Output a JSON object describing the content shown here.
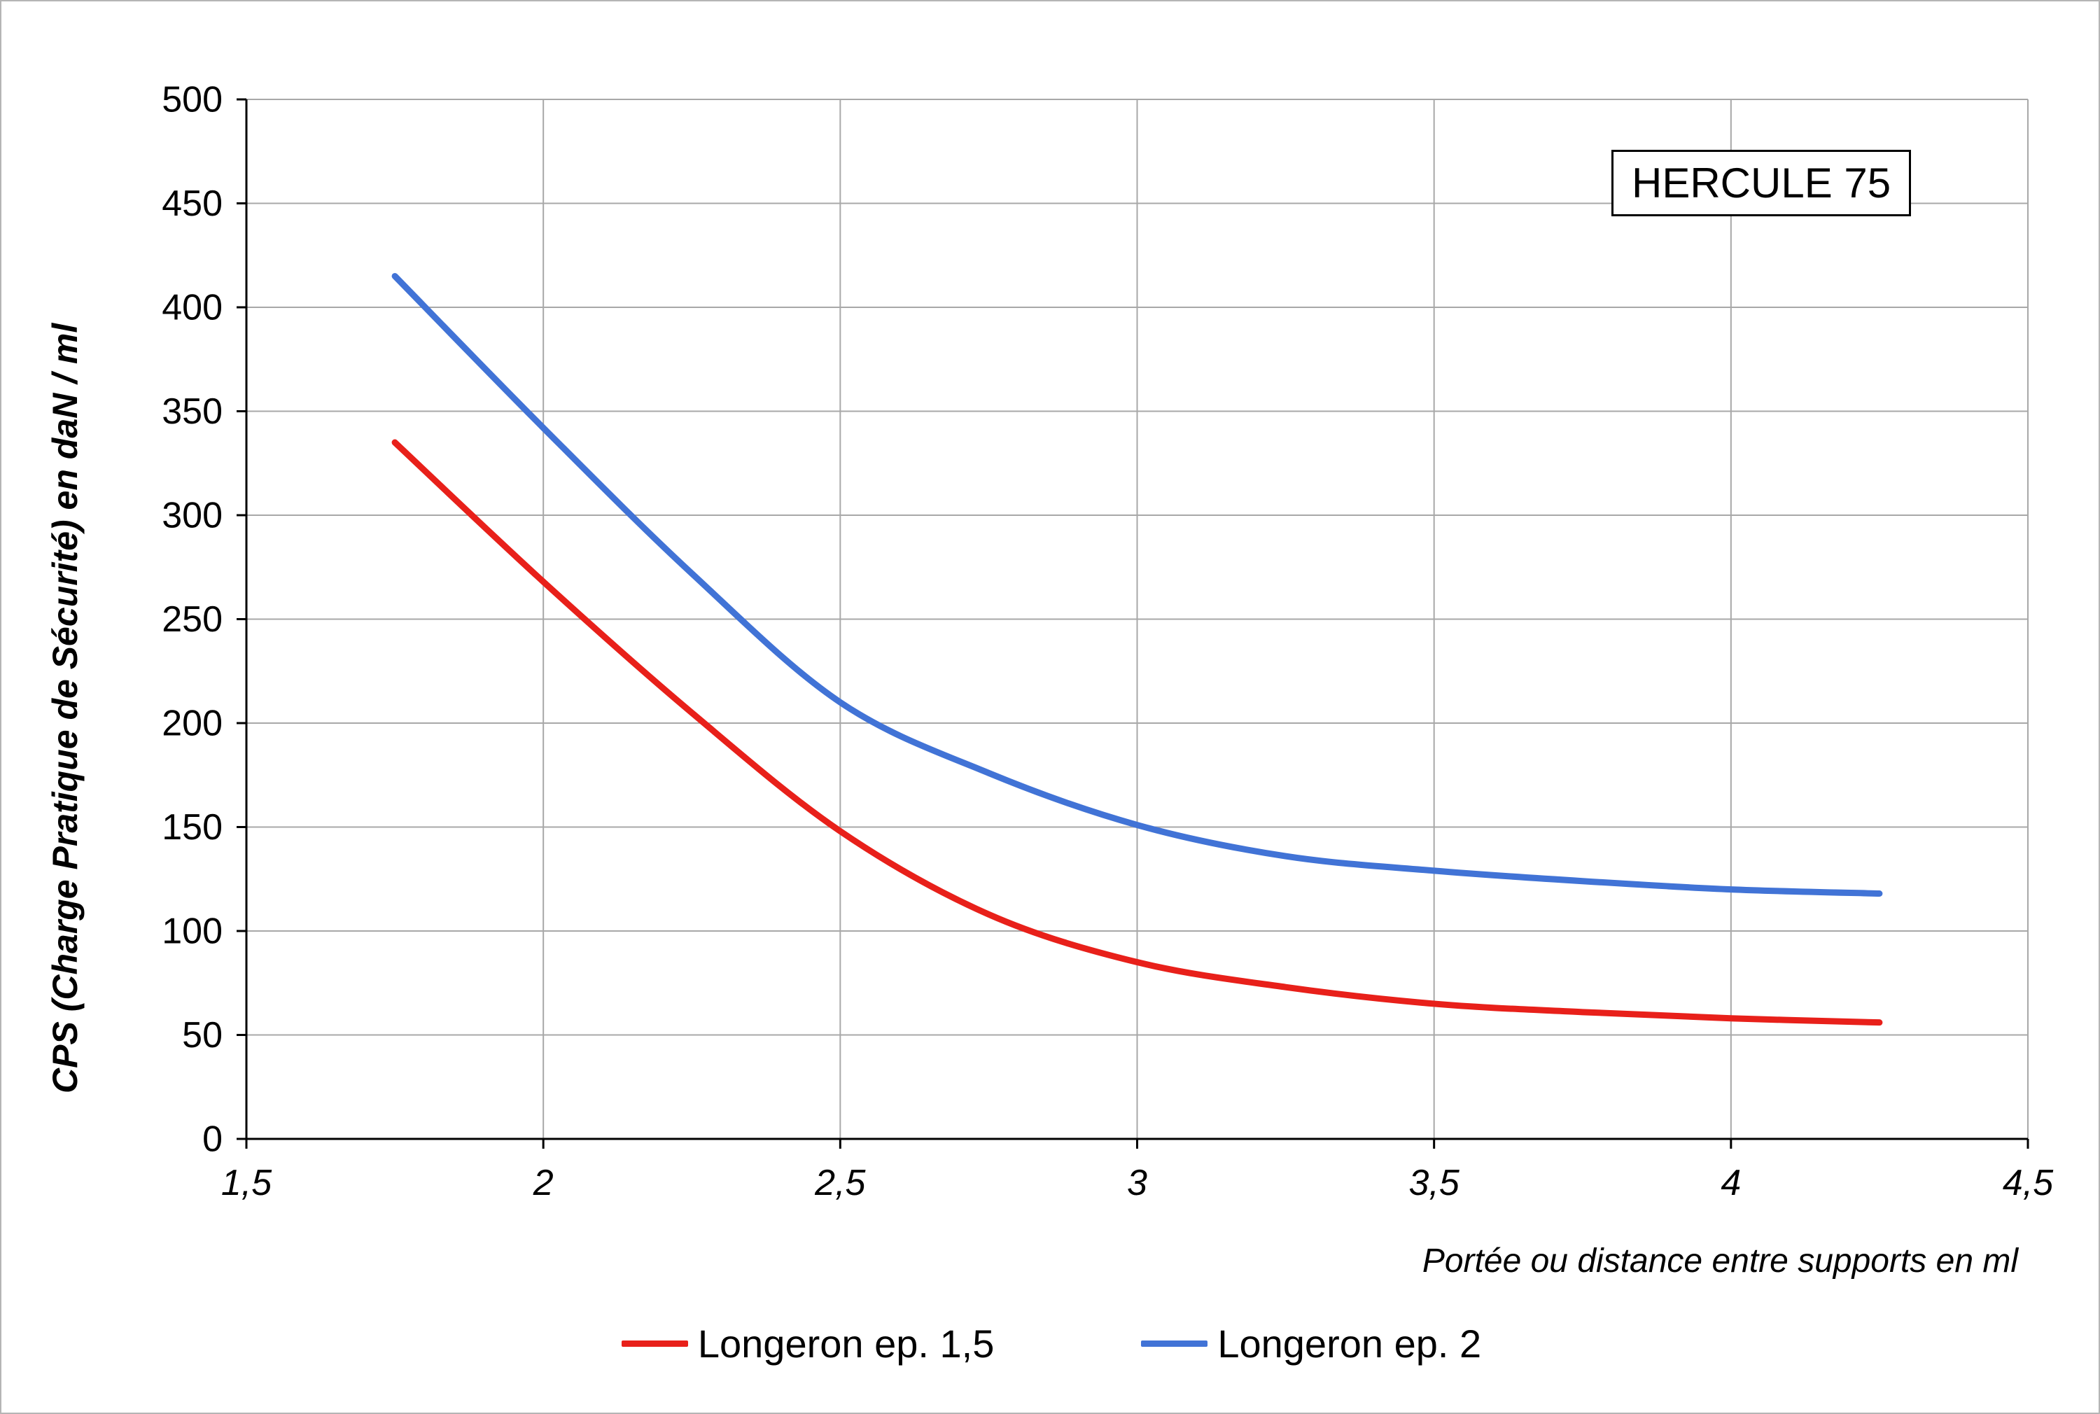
{
  "chart_data": {
    "type": "line",
    "title_box": "HERCULE 75",
    "xlabel": "Portée ou distance entre supports en ml",
    "ylabel": "CPS  (Charge Pratique de Sécurité) en daN / ml",
    "xlim": [
      1.5,
      4.5
    ],
    "ylim": [
      0,
      500
    ],
    "grid": true,
    "legend_position": "bottom",
    "xticks": {
      "values": [
        1.5,
        2,
        2.5,
        3,
        3.5,
        4,
        4.5
      ],
      "labels": [
        "1,5",
        "2",
        "2,5",
        "3",
        "3,5",
        "4",
        "4,5"
      ]
    },
    "yticks": {
      "values": [
        0,
        50,
        100,
        150,
        200,
        250,
        300,
        350,
        400,
        450,
        500
      ],
      "labels": [
        "0",
        "50",
        "100",
        "150",
        "200",
        "250",
        "300",
        "350",
        "400",
        "450",
        "500"
      ]
    },
    "series": [
      {
        "name": "Longeron ep. 1,5",
        "color": "#e8201a",
        "x": [
          1.75,
          2.0,
          2.25,
          2.5,
          2.75,
          3.0,
          3.25,
          3.5,
          3.75,
          4.0,
          4.25
        ],
        "y": [
          335,
          268,
          205,
          148,
          108,
          85,
          73,
          65,
          61,
          58,
          56
        ]
      },
      {
        "name": "Longeron ep. 2",
        "color": "#4173d6",
        "x": [
          1.75,
          2.0,
          2.25,
          2.5,
          2.75,
          3.0,
          3.25,
          3.5,
          3.75,
          4.0,
          4.25
        ],
        "y": [
          415,
          342,
          272,
          210,
          176,
          151,
          136,
          129,
          124,
          120,
          118
        ]
      }
    ]
  }
}
